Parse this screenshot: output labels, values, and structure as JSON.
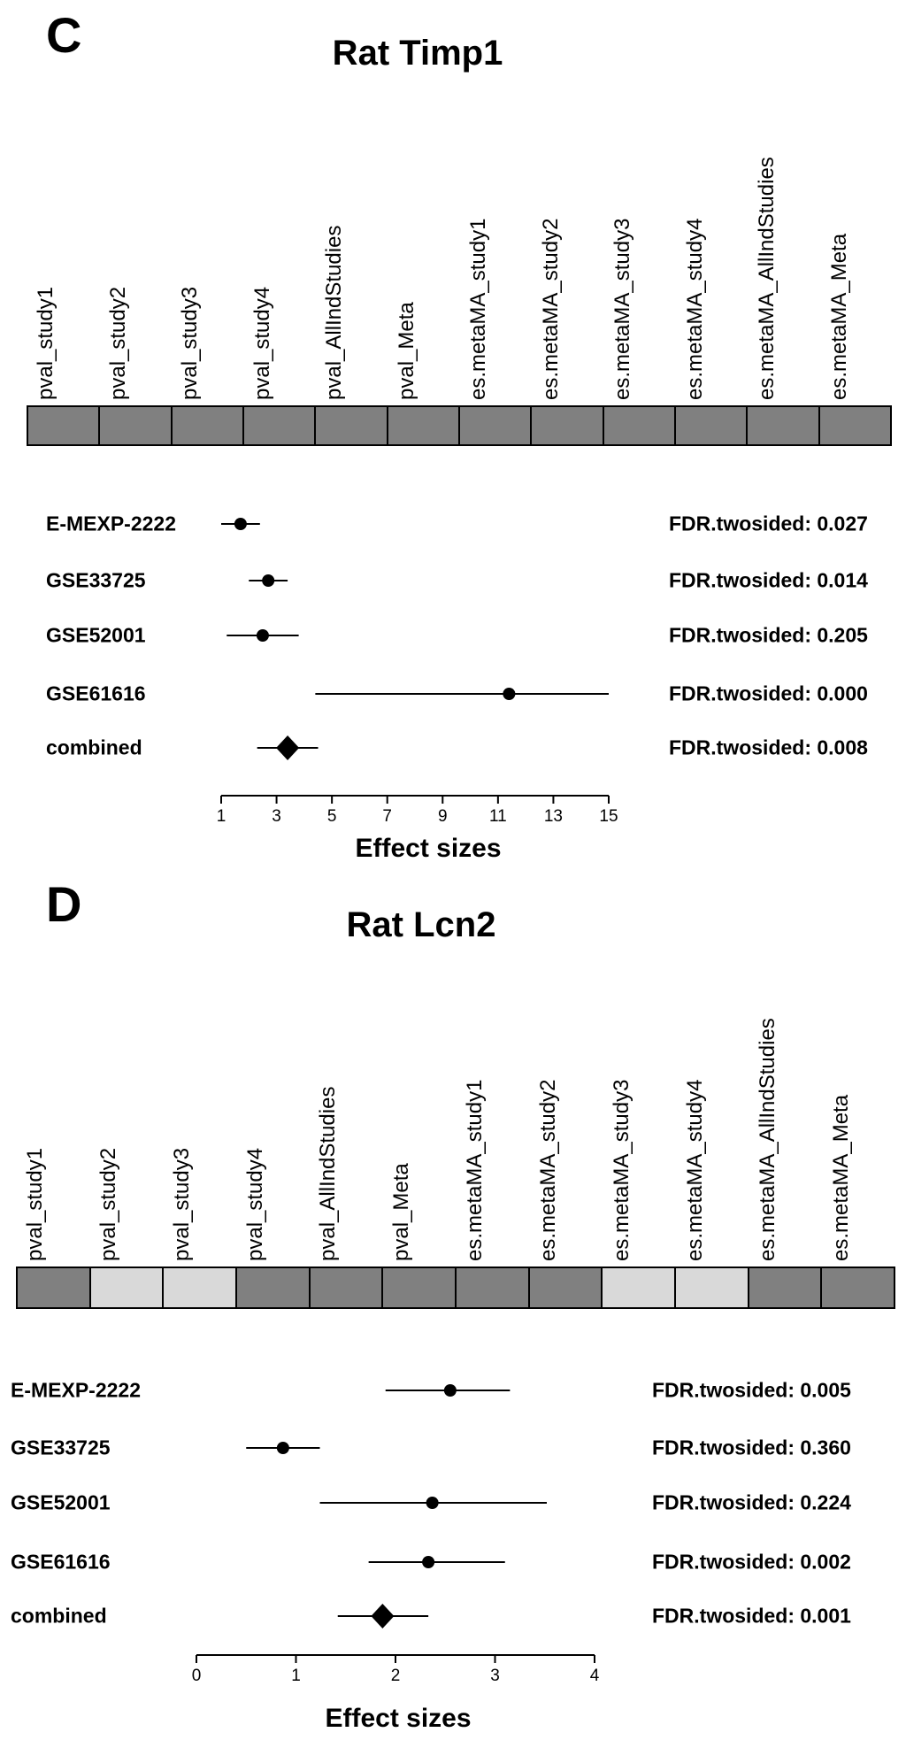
{
  "chart_data": [
    {
      "type": "forest",
      "panel_letter": "C",
      "title": "Rat Timp1",
      "heatmap": {
        "columns": [
          "pval_study1",
          "pval_study2",
          "pval_study3",
          "pval_study4",
          "pval_AllIndStudies",
          "pval_Meta",
          "es.metaMA_study1",
          "es.metaMA_study2",
          "es.metaMA_study3",
          "es.metaMA_study4",
          "es.metaMA_AllIndStudies",
          "es.metaMA_Meta"
        ],
        "cell_colors": [
          "#808080",
          "#808080",
          "#808080",
          "#808080",
          "#808080",
          "#808080",
          "#808080",
          "#808080",
          "#808080",
          "#808080",
          "#808080",
          "#808080"
        ]
      },
      "rows": [
        {
          "label": "E-MEXP-2222",
          "estimate": 1.7,
          "ci_low": 1.0,
          "ci_high": 2.4,
          "marker": "circle",
          "fdr": "FDR.twosided: 0.027"
        },
        {
          "label": "GSE33725",
          "estimate": 2.7,
          "ci_low": 2.0,
          "ci_high": 3.4,
          "marker": "circle",
          "fdr": "FDR.twosided: 0.014"
        },
        {
          "label": "GSE52001",
          "estimate": 2.5,
          "ci_low": 1.2,
          "ci_high": 3.8,
          "marker": "circle",
          "fdr": "FDR.twosided: 0.205"
        },
        {
          "label": "GSE61616",
          "estimate": 11.4,
          "ci_low": 4.4,
          "ci_high": 15.0,
          "marker": "circle",
          "fdr": "FDR.twosided: 0.000"
        },
        {
          "label": "combined",
          "estimate": 3.4,
          "ci_low": 2.3,
          "ci_high": 4.5,
          "marker": "diamond",
          "fdr": "FDR.twosided: 0.008"
        }
      ],
      "x_ticks": [
        1,
        3,
        5,
        7,
        9,
        11,
        13,
        15
      ],
      "xlim": [
        1,
        15
      ],
      "xlabel": "Effect sizes"
    },
    {
      "type": "forest",
      "panel_letter": "D",
      "title": "Rat Lcn2",
      "heatmap": {
        "columns": [
          "pval_study1",
          "pval_study2",
          "pval_study3",
          "pval_study4",
          "pval_AllIndStudies",
          "pval_Meta",
          "es.metaMA_study1",
          "es.metaMA_study2",
          "es.metaMA_study3",
          "es.metaMA_study4",
          "es.metaMA_AllIndStudies",
          "es.metaMA_Meta"
        ],
        "cell_colors": [
          "#808080",
          "#d9d9d9",
          "#d9d9d9",
          "#808080",
          "#808080",
          "#808080",
          "#808080",
          "#808080",
          "#d9d9d9",
          "#d9d9d9",
          "#808080",
          "#808080"
        ]
      },
      "rows": [
        {
          "label": "E-MEXP-2222",
          "estimate": 2.55,
          "ci_low": 1.9,
          "ci_high": 3.15,
          "marker": "circle",
          "fdr": "FDR.twosided: 0.005"
        },
        {
          "label": "GSE33725",
          "estimate": 0.87,
          "ci_low": 0.5,
          "ci_high": 1.24,
          "marker": "circle",
          "fdr": "FDR.twosided: 0.360"
        },
        {
          "label": "GSE52001",
          "estimate": 2.37,
          "ci_low": 1.24,
          "ci_high": 3.52,
          "marker": "circle",
          "fdr": "FDR.twosided: 0.224"
        },
        {
          "label": "GSE61616",
          "estimate": 2.33,
          "ci_low": 1.73,
          "ci_high": 3.1,
          "marker": "circle",
          "fdr": "FDR.twosided: 0.002"
        },
        {
          "label": "combined",
          "estimate": 1.87,
          "ci_low": 1.42,
          "ci_high": 2.33,
          "marker": "diamond",
          "fdr": "FDR.twosided: 0.001"
        }
      ],
      "x_ticks": [
        0,
        1,
        2,
        3,
        4
      ],
      "xlim": [
        0,
        4
      ],
      "xlabel": "Effect sizes"
    }
  ]
}
